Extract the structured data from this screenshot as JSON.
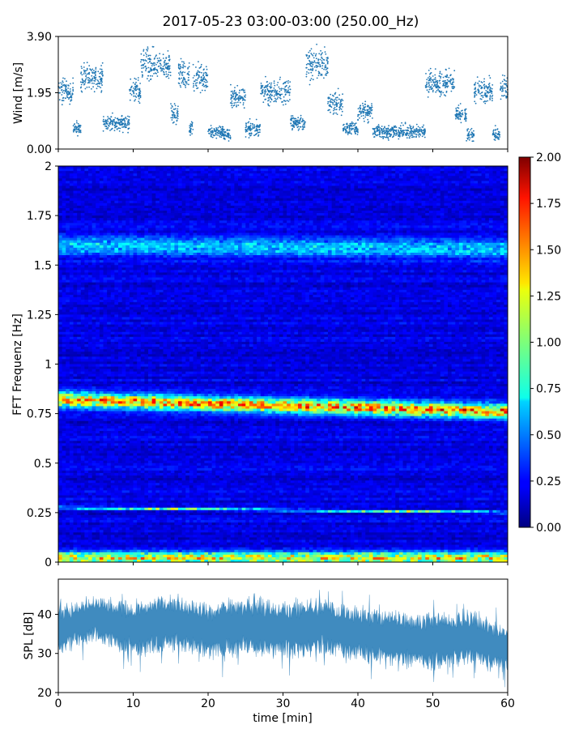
{
  "figure": {
    "title": "2017-05-23 03:00-03:00 (250.00_Hz)",
    "xlabel": "time [min]"
  },
  "chart_data": [
    {
      "type": "scatter",
      "panel": "wind",
      "ylabel": "Wind [m/s]",
      "xlim": [
        0,
        60
      ],
      "ylim": [
        0,
        3.9
      ],
      "yticks": [
        "0.00",
        "1.95",
        "3.90"
      ],
      "marker_color": "#1f77b4",
      "segments": [
        {
          "x0": 0,
          "x1": 2,
          "mean": 2.0
        },
        {
          "x0": 2,
          "x1": 3,
          "mean": 0.7
        },
        {
          "x0": 3,
          "x1": 6,
          "mean": 2.5
        },
        {
          "x0": 6,
          "x1": 9.5,
          "mean": 0.9
        },
        {
          "x0": 9.5,
          "x1": 11,
          "mean": 2.0
        },
        {
          "x0": 11,
          "x1": 15,
          "mean": 2.9
        },
        {
          "x0": 15,
          "x1": 16,
          "mean": 1.2
        },
        {
          "x0": 16,
          "x1": 17.5,
          "mean": 2.6
        },
        {
          "x0": 17.5,
          "x1": 18,
          "mean": 0.7
        },
        {
          "x0": 18,
          "x1": 20,
          "mean": 2.5
        },
        {
          "x0": 20,
          "x1": 22,
          "mean": 0.6
        },
        {
          "x0": 22,
          "x1": 23,
          "mean": 0.5
        },
        {
          "x0": 23,
          "x1": 25,
          "mean": 1.8
        },
        {
          "x0": 25,
          "x1": 27,
          "mean": 0.7
        },
        {
          "x0": 27,
          "x1": 31,
          "mean": 2.0
        },
        {
          "x0": 31,
          "x1": 33,
          "mean": 0.9
        },
        {
          "x0": 33,
          "x1": 36,
          "mean": 2.9
        },
        {
          "x0": 36,
          "x1": 38,
          "mean": 1.6
        },
        {
          "x0": 38,
          "x1": 40,
          "mean": 0.7
        },
        {
          "x0": 40,
          "x1": 42,
          "mean": 1.3
        },
        {
          "x0": 42,
          "x1": 48,
          "mean": 0.6
        },
        {
          "x0": 48,
          "x1": 49,
          "mean": 0.6
        },
        {
          "x0": 49,
          "x1": 53,
          "mean": 2.3
        },
        {
          "x0": 53,
          "x1": 54.5,
          "mean": 1.2
        },
        {
          "x0": 54.5,
          "x1": 55.5,
          "mean": 0.5
        },
        {
          "x0": 55.5,
          "x1": 58,
          "mean": 2.0
        },
        {
          "x0": 58,
          "x1": 59,
          "mean": 0.5
        },
        {
          "x0": 59,
          "x1": 60,
          "mean": 2.1
        }
      ]
    },
    {
      "type": "heatmap",
      "panel": "spectrogram",
      "ylabel": "FFT Frequenz [Hz]",
      "xlim": [
        0,
        60
      ],
      "ylim": [
        0,
        2
      ],
      "yticks": [
        "0",
        "0.25",
        "0.5",
        "0.75",
        "1",
        "1.25",
        "1.5",
        "1.75",
        "2"
      ],
      "colormap": "jet",
      "colorbar": {
        "range": [
          0,
          2
        ],
        "ticks": [
          "0.00",
          "0.25",
          "0.50",
          "0.75",
          "1.00",
          "1.25",
          "1.50",
          "1.75",
          "2.00"
        ]
      },
      "background_level": 0.2,
      "bands": [
        {
          "freq_start": 0.82,
          "freq_end": 0.76,
          "width": 0.035,
          "level": 1.3,
          "label": "dominant tonal band"
        },
        {
          "freq_start": 0.275,
          "freq_end": 0.25,
          "width": 0.006,
          "level": 0.85,
          "label": "narrow line"
        },
        {
          "freq_start": 1.6,
          "freq_end": 1.58,
          "width": 0.05,
          "level": 0.45,
          "label": "upper band"
        },
        {
          "freq_start": 0.02,
          "freq_end": 0.02,
          "width": 0.03,
          "level": 1.1,
          "label": "low-frequency band"
        }
      ]
    },
    {
      "type": "area",
      "panel": "spl",
      "ylabel": "SPL [dB]",
      "xlim": [
        0,
        60
      ],
      "ylim": [
        20,
        49
      ],
      "yticks": [
        "20",
        "30",
        "40"
      ],
      "xticks": [
        "0",
        "10",
        "20",
        "30",
        "40",
        "50",
        "60"
      ],
      "fill_color": "#1f77b4",
      "envelope": [
        {
          "x": 0,
          "center": 36,
          "spread": 4
        },
        {
          "x": 5,
          "center": 39,
          "spread": 4
        },
        {
          "x": 10,
          "center": 36,
          "spread": 5
        },
        {
          "x": 15,
          "center": 38,
          "spread": 5
        },
        {
          "x": 20,
          "center": 36,
          "spread": 5
        },
        {
          "x": 25,
          "center": 37,
          "spread": 5
        },
        {
          "x": 30,
          "center": 36,
          "spread": 5
        },
        {
          "x": 35,
          "center": 37,
          "spread": 5
        },
        {
          "x": 40,
          "center": 35,
          "spread": 5
        },
        {
          "x": 45,
          "center": 34,
          "spread": 5
        },
        {
          "x": 50,
          "center": 33,
          "spread": 5
        },
        {
          "x": 55,
          "center": 34,
          "spread": 5
        },
        {
          "x": 60,
          "center": 31,
          "spread": 4
        }
      ]
    }
  ]
}
